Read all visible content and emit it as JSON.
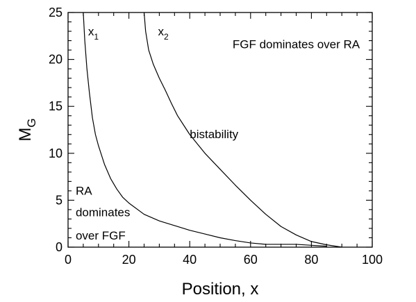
{
  "chart_data": {
    "type": "line",
    "xlabel": "Position, x",
    "ylabel": {
      "main": "M",
      "sub": "G"
    },
    "xlim": [
      0,
      100
    ],
    "ylim": [
      0,
      25
    ],
    "xticks": [
      0,
      20,
      40,
      60,
      80,
      100
    ],
    "yticks": [
      0,
      5,
      10,
      15,
      20,
      25
    ],
    "grid": false,
    "series": [
      {
        "name": "x1",
        "label_main": "x",
        "label_sub": "1",
        "x": [
          5,
          5.5,
          6.2,
          7,
          8,
          9,
          10,
          12,
          14,
          16,
          18,
          20,
          25,
          30,
          35,
          40,
          45,
          50,
          55,
          60,
          65,
          70,
          75,
          80,
          85
        ],
        "y": [
          25,
          22,
          19,
          16.5,
          13.8,
          12,
          10.8,
          8.8,
          7.3,
          6.2,
          5.3,
          4.7,
          3.5,
          2.8,
          2.3,
          1.8,
          1.4,
          1.0,
          0.7,
          0.45,
          0.3,
          0.3,
          0.3,
          0.2,
          0.1
        ]
      },
      {
        "name": "x2",
        "label_main": "x",
        "label_sub": "2",
        "x": [
          25,
          25.5,
          26.5,
          28,
          30,
          32,
          34,
          36,
          38,
          40,
          45,
          50,
          55,
          60,
          65,
          70,
          75,
          80,
          85,
          90
        ],
        "y": [
          25,
          23,
          21,
          19.5,
          18,
          16.7,
          15.3,
          14.0,
          13.0,
          12.0,
          10.0,
          8.3,
          6.6,
          5.0,
          3.5,
          2.2,
          1.3,
          0.6,
          0.25,
          0
        ]
      }
    ],
    "annotations": [
      {
        "id": "fgf",
        "text": "FGF dominates over RA",
        "x": 75,
        "y": 21.2
      },
      {
        "id": "bistability",
        "text": "bistability",
        "x": 48,
        "y": 11.6
      },
      {
        "id": "ra-1",
        "text": "RA",
        "x": 2.5,
        "y": 5.6
      },
      {
        "id": "ra-2",
        "text": "dominates",
        "x": 2.5,
        "y": 3.3
      },
      {
        "id": "ra-3",
        "text": "over FGF",
        "x": 2.5,
        "y": 0.8
      }
    ]
  }
}
